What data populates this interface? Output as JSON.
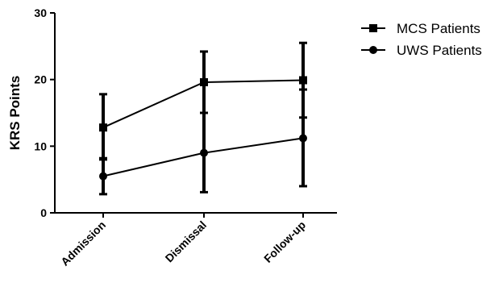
{
  "chart_data": {
    "type": "line",
    "title": "",
    "xlabel": "",
    "ylabel": "KRS Points",
    "categories": [
      "Admission",
      "Dismissal",
      "Follow-up"
    ],
    "ylim": [
      0,
      30
    ],
    "yticks": [
      0,
      10,
      20,
      30
    ],
    "grid": false,
    "legend_position": "top-right",
    "series": [
      {
        "name": "MCS Patients",
        "marker": "square",
        "color": "#000000",
        "values": [
          12.8,
          19.6,
          19.9
        ],
        "error_low": [
          8.0,
          15.0,
          14.3
        ],
        "error_high": [
          17.8,
          24.2,
          25.5
        ]
      },
      {
        "name": "UWS Patients",
        "marker": "circle",
        "color": "#000000",
        "values": [
          5.5,
          9.0,
          11.2
        ],
        "error_low": [
          2.8,
          3.1,
          4.0
        ],
        "error_high": [
          8.2,
          15.0,
          18.5
        ]
      }
    ]
  }
}
